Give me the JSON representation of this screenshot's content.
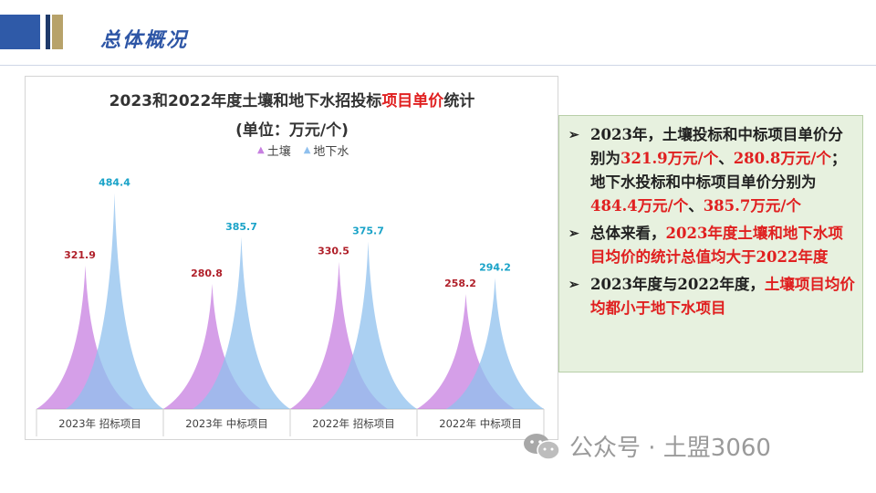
{
  "page": {
    "title": "总体概况"
  },
  "chart_data": {
    "type": "area",
    "title_prefix": "2023和2022年度土壤和地下水招投标",
    "title_highlight": "项目单价",
    "title_suffix": "统计",
    "subtitle": "(单位：万元/个)",
    "categories": [
      "2023年  招标项目",
      "2023年  中标项目",
      "2022年  招标项目",
      "2022年  中标项目"
    ],
    "series": [
      {
        "name": "土壤",
        "values": [
          321.9,
          280.8,
          330.5,
          258.2
        ],
        "color": "#c77fe0",
        "label_color": "#b0202a"
      },
      {
        "name": "地下水",
        "values": [
          484.4,
          385.7,
          375.7,
          294.2
        ],
        "color": "#8fc0ee",
        "label_color": "#1aa3c8"
      }
    ],
    "value_labels": {
      "土壤": [
        "321.9",
        "280.8",
        "330.5",
        "258.2"
      ],
      "地下水": [
        "484.4",
        "385.7",
        "375.7",
        "294.2"
      ]
    },
    "ylim": [
      0,
      500
    ],
    "grid": false,
    "legend": "top"
  },
  "info": {
    "b1_text": "2023年，土壤投标和中标项目单价分别为",
    "b1_v1": "321.9万元/个",
    "b1_sep": "、",
    "b1_v2": "280.8万元/个",
    "b1_text2": "；地下水投标和中标项目单价分别为",
    "b1_v3": "484.4万元/个",
    "b1_sep2": "、",
    "b1_v4": "385.7万元/个",
    "b2_text": "总体来看，",
    "b2_red": "2023年度土壤和地下水项目均价的统计总值均大于2022年度",
    "b3_text": "2023年度与2022年度，",
    "b3_red": "土壤项目均价均都小于地下水项目",
    "bullet_mark": "➢"
  },
  "watermark": {
    "text": "公众号 · 土盟3060"
  }
}
